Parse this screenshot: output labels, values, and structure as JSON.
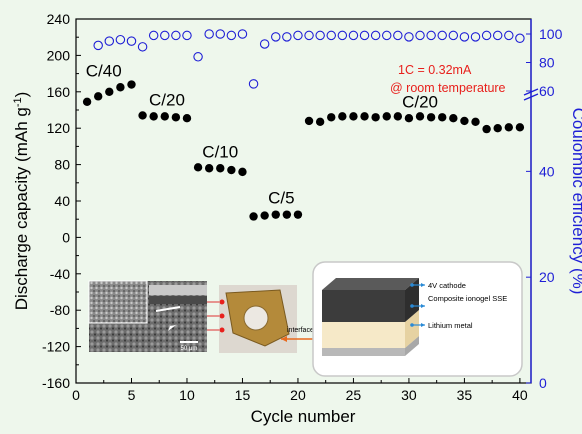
{
  "colors": {
    "background": "#eef7ec",
    "discharge": "#000000",
    "efficiency": "#1f1fd6",
    "annotation": "#e8201c"
  },
  "chart_data": {
    "type": "scatter",
    "xlabel": "Cycle number",
    "ylabel_left": "Discharge capacity (mAh g",
    "ylabel_left_sup": "-1",
    "ylabel_left_end": ")",
    "ylabel_right": "Coulombic efficiency (%)",
    "xlim": [
      0,
      41
    ],
    "ylim_left": [
      -160,
      240
    ],
    "x_ticks": [
      "0",
      "5",
      "10",
      "15",
      "20",
      "25",
      "30",
      "35",
      "40"
    ],
    "y_left_ticks": [
      "240",
      "200",
      "160",
      "120",
      "80",
      "40",
      "0",
      "-40",
      "-80",
      "-120",
      "-160"
    ],
    "y_right_ticks_lower": [
      "0",
      "20",
      "40"
    ],
    "y_right_ticks_upper": [
      "60",
      "80",
      "100"
    ],
    "right_axis": {
      "lower_range": [
        0,
        55
      ],
      "upper_range": [
        60,
        100
      ]
    },
    "series": [
      {
        "marker": "filled-circle",
        "axis": "left",
        "x": [
          1,
          2,
          3,
          4,
          5,
          6,
          7,
          8,
          9,
          10,
          11,
          12,
          13,
          14,
          15,
          16,
          17,
          18,
          19,
          20,
          21,
          22,
          23,
          24,
          25,
          26,
          27,
          28,
          29,
          30,
          31,
          32,
          33,
          34,
          35,
          36,
          37,
          38,
          39,
          40
        ],
        "y": [
          149,
          155,
          160,
          165,
          168,
          134,
          133,
          133,
          132,
          131,
          77,
          76,
          76,
          74,
          72,
          23,
          24,
          25,
          25,
          25,
          128,
          127,
          132,
          133,
          133,
          133,
          132,
          133,
          133,
          131,
          133,
          132,
          132,
          131,
          128,
          127,
          119,
          120,
          121,
          121
        ]
      },
      {
        "marker": "open-circle",
        "axis": "right",
        "x": [
          2,
          3,
          4,
          5,
          6,
          7,
          8,
          9,
          10,
          11,
          12,
          13,
          14,
          15,
          16,
          17,
          18,
          19,
          20,
          21,
          22,
          23,
          24,
          25,
          26,
          27,
          28,
          29,
          30,
          31,
          32,
          33,
          34,
          35,
          36,
          37,
          38,
          39,
          40
        ],
        "y": [
          92,
          95,
          96,
          95,
          91,
          99,
          99,
          99,
          99,
          84,
          100,
          100,
          99,
          100,
          65,
          93,
          98,
          98,
          99,
          99,
          99,
          99,
          99,
          99,
          99,
          99,
          99,
          99,
          98,
          99,
          99,
          99,
          99,
          98,
          98,
          99,
          99,
          99,
          97
        ]
      }
    ],
    "annotations": {
      "rates": [
        {
          "text": "C/40",
          "x": 2.5,
          "y": 177
        },
        {
          "text": "C/20",
          "x": 8.2,
          "y": 145
        },
        {
          "text": "C/10",
          "x": 13.0,
          "y": 88
        },
        {
          "text": "C/5",
          "x": 18.5,
          "y": 37
        },
        {
          "text": "C/20",
          "x": 31.0,
          "y": 143
        }
      ],
      "condition_line1": "1C = 0.32mA",
      "condition_line2": "@ room temperature"
    }
  },
  "inset": {
    "scale_bar": "50 μm",
    "interface_label": "interface",
    "layers": [
      "4V cathode",
      "Composite ionogel SSE",
      "Lithium metal"
    ]
  }
}
